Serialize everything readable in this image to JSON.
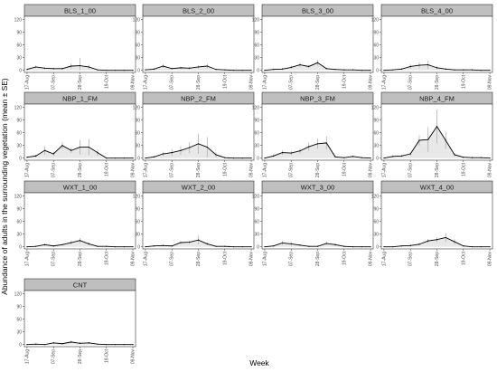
{
  "chart_data": {
    "type": "line",
    "xlabel": "Week",
    "ylabel": "Abundance of adults in the surrounding vegetation (mean ± SE)",
    "ylim": [
      -5,
      128
    ],
    "yticks": [
      0,
      30,
      60,
      90,
      120
    ],
    "x_tick_labels": [
      "17-Aug",
      "07-Sep",
      "28-Sep",
      "19-Oct",
      "09-Nov"
    ],
    "x_tick_positions": [
      0,
      3,
      6,
      9,
      12
    ],
    "colors": {
      "strip_bg": "#bfbfbf",
      "line": "#000000",
      "fill": "#e8e8e8",
      "error_bar": "#a6a6a6",
      "panel_border": "#333333"
    },
    "panels": [
      {
        "title": "BLS_1_00",
        "x": [
          0,
          1,
          2,
          3,
          4,
          5,
          6,
          7,
          8,
          9,
          10,
          11,
          12
        ],
        "y": [
          2,
          8,
          5,
          4,
          4,
          10,
          11,
          8,
          1,
          0,
          0,
          0,
          0
        ],
        "se": [
          1,
          3,
          2,
          2,
          3,
          6,
          18,
          5,
          1,
          0,
          0,
          0,
          0
        ]
      },
      {
        "title": "BLS_2_00",
        "x": [
          0,
          1,
          2,
          3,
          4,
          5,
          6,
          7,
          8,
          9,
          10,
          11,
          12
        ],
        "y": [
          1,
          3,
          10,
          4,
          6,
          5,
          8,
          10,
          2,
          1,
          0,
          0,
          0
        ],
        "se": [
          1,
          2,
          4,
          2,
          3,
          3,
          4,
          5,
          1,
          1,
          0,
          0,
          0
        ]
      },
      {
        "title": "BLS_3_00",
        "x": [
          0,
          1,
          2,
          3,
          4,
          5,
          6,
          7,
          8,
          9,
          10,
          11,
          12
        ],
        "y": [
          0,
          2,
          3,
          7,
          13,
          9,
          18,
          4,
          2,
          1,
          1,
          0,
          0
        ],
        "se": [
          0,
          1,
          2,
          3,
          5,
          4,
          7,
          2,
          1,
          1,
          1,
          0,
          0
        ]
      },
      {
        "title": "BLS_4_00",
        "x": [
          0,
          1,
          2,
          3,
          4,
          5,
          6,
          7,
          8,
          9,
          10,
          11,
          12
        ],
        "y": [
          0,
          1,
          3,
          9,
          12,
          13,
          6,
          3,
          1,
          1,
          1,
          0,
          0
        ],
        "se": [
          0,
          1,
          2,
          5,
          7,
          9,
          4,
          2,
          1,
          1,
          1,
          0,
          0
        ]
      },
      {
        "title": "NBP_1_FM",
        "x": [
          0,
          1,
          2,
          3,
          4,
          5,
          6,
          7,
          8,
          9,
          10,
          11,
          12
        ],
        "y": [
          2,
          5,
          18,
          10,
          30,
          18,
          26,
          26,
          13,
          0,
          0,
          0,
          0
        ],
        "se": [
          1,
          3,
          10,
          5,
          8,
          6,
          17,
          19,
          7,
          0,
          0,
          0,
          0
        ]
      },
      {
        "title": "NBP_2_FM",
        "x": [
          0,
          1,
          2,
          3,
          4,
          5,
          6,
          7,
          8,
          9,
          10,
          11,
          12
        ],
        "y": [
          0,
          3,
          10,
          13,
          18,
          25,
          34,
          26,
          8,
          1,
          0,
          0,
          0
        ],
        "se": [
          0,
          2,
          5,
          8,
          10,
          13,
          24,
          24,
          6,
          1,
          0,
          0,
          0
        ]
      },
      {
        "title": "NBP_3_FM",
        "x": [
          0,
          1,
          2,
          3,
          4,
          5,
          6,
          7,
          8,
          9,
          10,
          11,
          12
        ],
        "y": [
          0,
          5,
          13,
          12,
          17,
          27,
          34,
          36,
          3,
          1,
          4,
          1,
          0
        ],
        "se": [
          0,
          3,
          5,
          5,
          6,
          10,
          12,
          15,
          2,
          1,
          2,
          1,
          0
        ]
      },
      {
        "title": "NBP_4_FM",
        "x": [
          0,
          1,
          2,
          3,
          4,
          5,
          6,
          7,
          8,
          9,
          10,
          11,
          12
        ],
        "y": [
          0,
          4,
          5,
          10,
          42,
          44,
          75,
          42,
          8,
          2,
          1,
          1,
          0
        ],
        "se": [
          0,
          2,
          3,
          5,
          12,
          29,
          40,
          20,
          4,
          1,
          1,
          1,
          0
        ]
      },
      {
        "title": "WXT_1_00",
        "x": [
          0,
          1,
          2,
          3,
          4,
          5,
          6,
          7,
          8,
          9,
          10,
          11,
          12
        ],
        "y": [
          0,
          1,
          5,
          2,
          5,
          10,
          15,
          7,
          1,
          1,
          0,
          0,
          0
        ],
        "se": [
          0,
          1,
          3,
          1,
          2,
          4,
          6,
          3,
          1,
          1,
          0,
          0,
          0
        ]
      },
      {
        "title": "WXT_2_00",
        "x": [
          0,
          1,
          2,
          3,
          4,
          5,
          6,
          7,
          8,
          9,
          10,
          11,
          12
        ],
        "y": [
          0,
          2,
          3,
          2,
          10,
          11,
          16,
          7,
          1,
          1,
          0,
          0,
          0
        ],
        "se": [
          0,
          1,
          2,
          1,
          3,
          4,
          10,
          3,
          1,
          1,
          0,
          0,
          0
        ]
      },
      {
        "title": "WXT_3_00",
        "x": [
          0,
          1,
          2,
          3,
          4,
          5,
          6,
          7,
          8,
          9,
          10,
          11,
          12
        ],
        "y": [
          0,
          2,
          9,
          7,
          4,
          1,
          1,
          8,
          5,
          1,
          0,
          0,
          0
        ],
        "se": [
          0,
          1,
          5,
          5,
          2,
          1,
          1,
          4,
          3,
          1,
          0,
          0,
          0
        ]
      },
      {
        "title": "WXT_4_00",
        "x": [
          0,
          1,
          2,
          3,
          4,
          5,
          6,
          7,
          8,
          9,
          10,
          11,
          12
        ],
        "y": [
          0,
          0,
          2,
          3,
          6,
          14,
          17,
          22,
          12,
          2,
          0,
          0,
          0
        ],
        "se": [
          0,
          0,
          1,
          2,
          3,
          5,
          6,
          10,
          6,
          1,
          0,
          0,
          0
        ]
      },
      {
        "title": "CNT",
        "x": [
          0,
          1,
          2,
          3,
          4,
          5,
          6,
          7,
          8,
          9,
          10,
          11,
          12
        ],
        "y": [
          0,
          1,
          0,
          4,
          2,
          6,
          3,
          4,
          1,
          0,
          0,
          0,
          0
        ],
        "se": [
          0,
          1,
          0,
          2,
          1,
          3,
          2,
          2,
          1,
          0,
          0,
          0,
          0
        ]
      }
    ]
  }
}
